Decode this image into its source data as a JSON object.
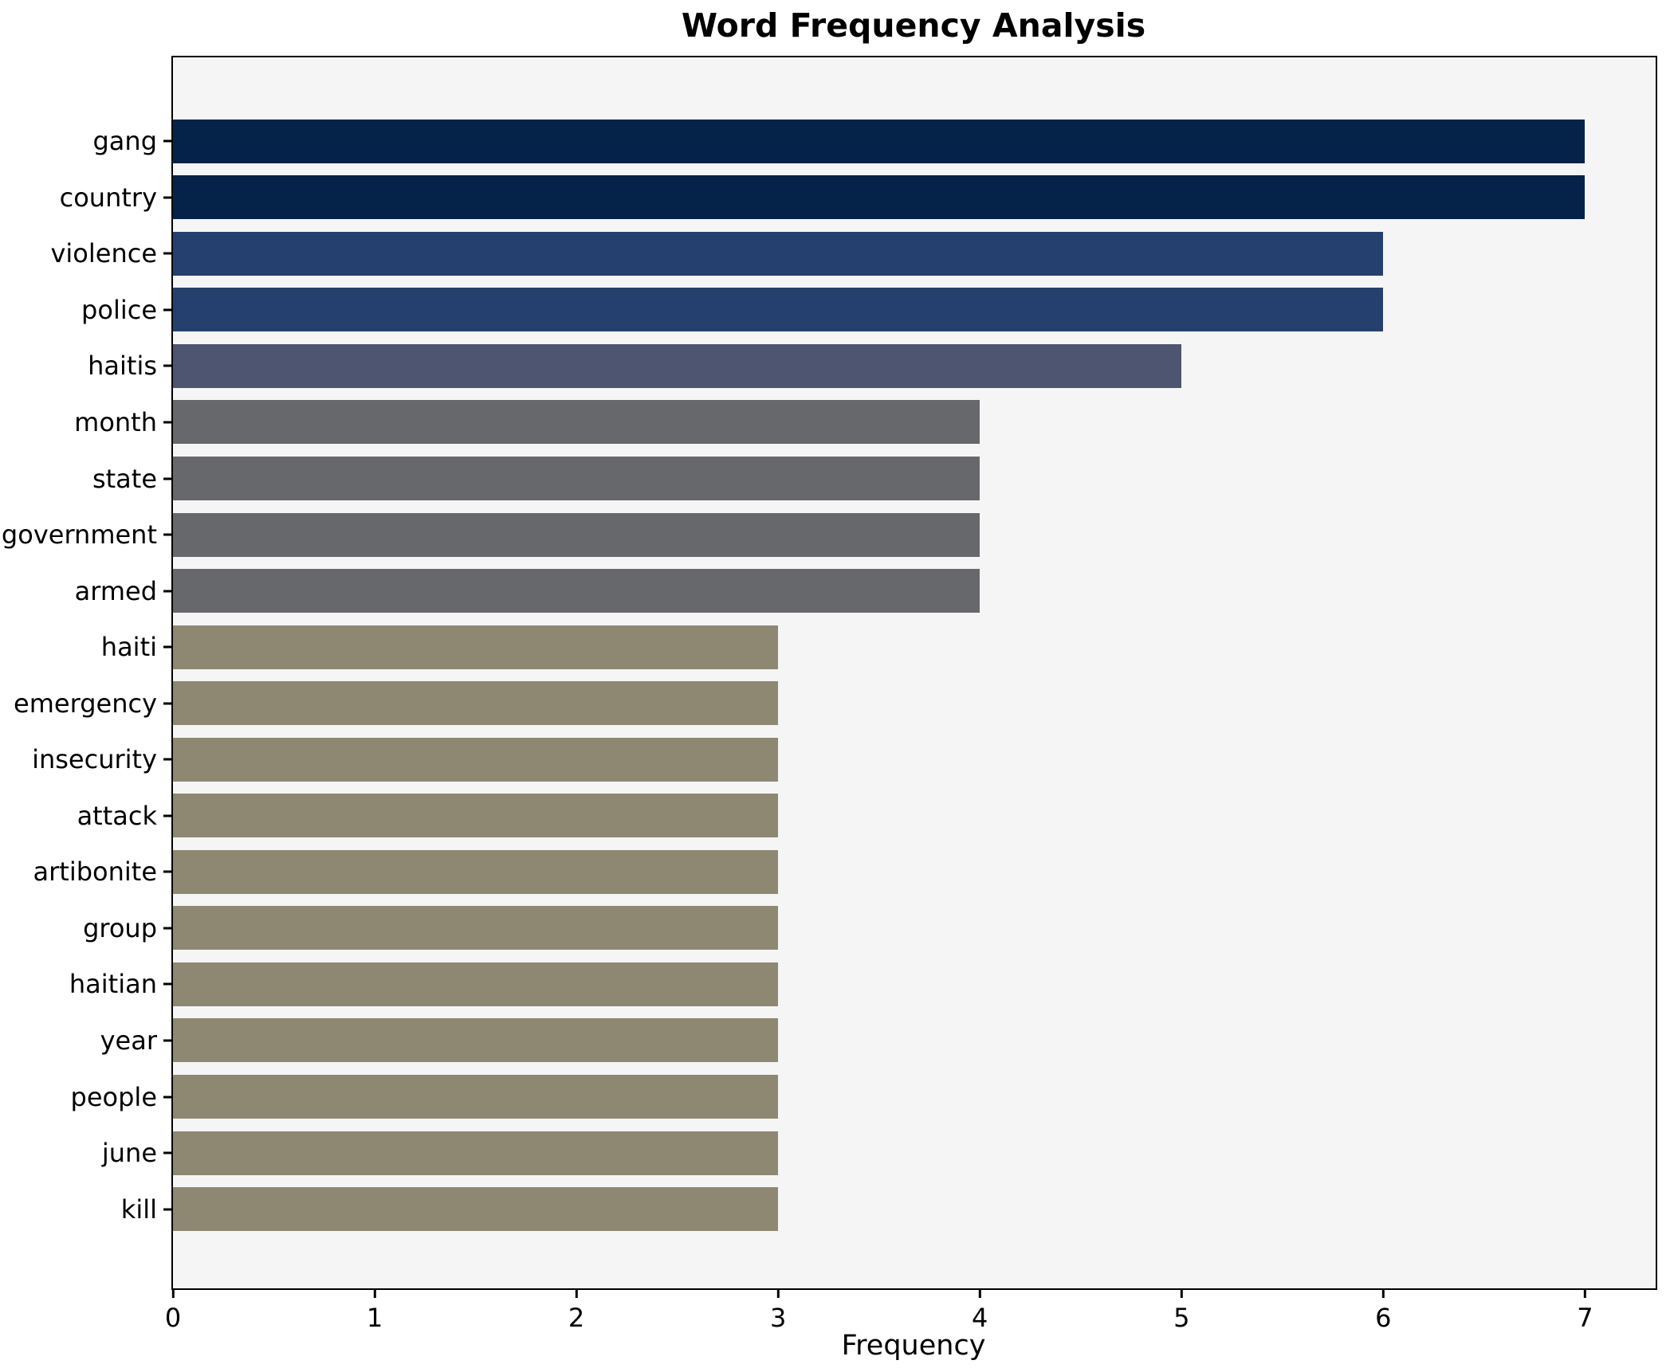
{
  "chart_data": {
    "type": "bar",
    "orientation": "horizontal",
    "title": "Word Frequency Analysis",
    "xlabel": "Frequency",
    "ylabel": "",
    "categories": [
      "gang",
      "country",
      "violence",
      "police",
      "haitis",
      "month",
      "state",
      "government",
      "armed",
      "haiti",
      "emergency",
      "insecurity",
      "attack",
      "artibonite",
      "group",
      "haitian",
      "year",
      "people",
      "june",
      "kill"
    ],
    "values": [
      7,
      7,
      6,
      6,
      5,
      4,
      4,
      4,
      4,
      3,
      3,
      3,
      3,
      3,
      3,
      3,
      3,
      3,
      3,
      3
    ],
    "bar_colors": [
      "#052249",
      "#052249",
      "#25406e",
      "#25406e",
      "#4d5571",
      "#67686c",
      "#67686c",
      "#67686c",
      "#67686c",
      "#8e8772",
      "#8e8772",
      "#8e8772",
      "#8e8772",
      "#8e8772",
      "#8e8772",
      "#8e8772",
      "#8e8772",
      "#8e8772",
      "#8e8772",
      "#8e8772"
    ],
    "xticks": [
      "0",
      "1",
      "2",
      "3",
      "4",
      "5",
      "6",
      "7"
    ],
    "xlim": [
      0,
      7.35
    ],
    "grid": false,
    "legend_position": "none",
    "plot_background": "#f5f5f5",
    "figure_background": "#ffffff",
    "spine_color": "#000000",
    "text_color": "#000000"
  }
}
